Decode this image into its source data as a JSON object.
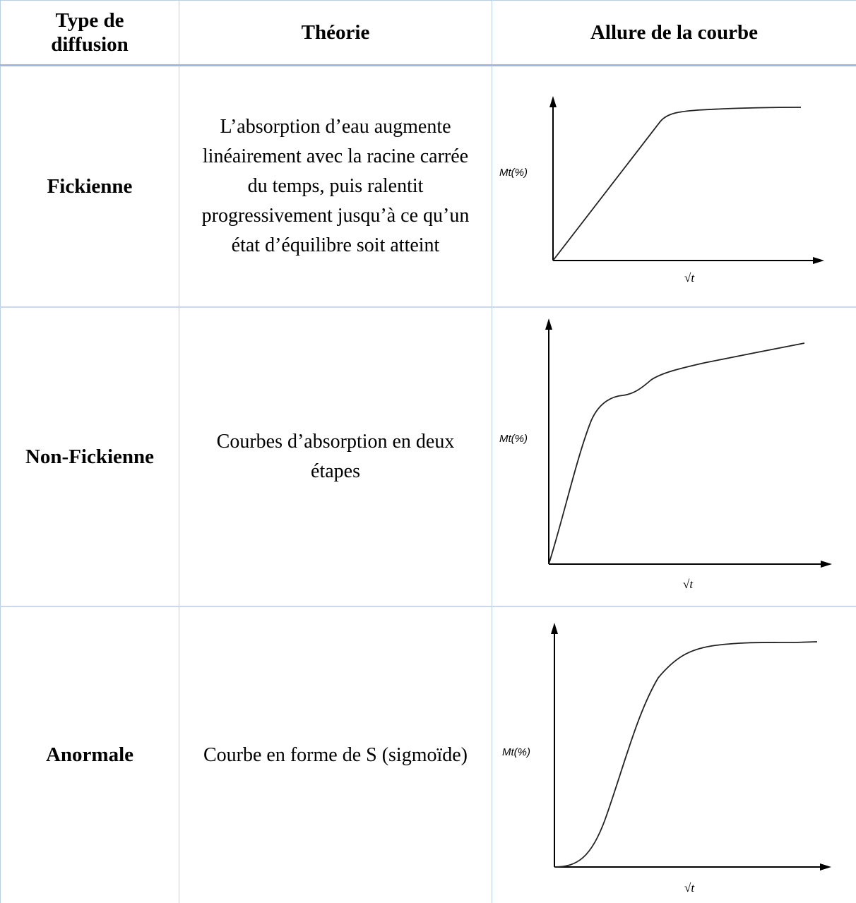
{
  "table": {
    "headers": {
      "type": "Type de diffusion",
      "theory": "Théorie",
      "curve": "Allure de la courbe"
    },
    "rows": [
      {
        "type": "Fickienne",
        "theory": "L’absorption d’eau augmente linéairement avec la racine carrée du temps, puis ralentit progressivement jusqu’à ce qu’un état d’équilibre soit atteint",
        "ylabel": "Mt(%)",
        "xlabel": "√t"
      },
      {
        "type": "Non-Fickienne",
        "theory": "Courbes d’absorption en deux étapes",
        "ylabel": "Mt(%)",
        "xlabel": "√t"
      },
      {
        "type": "Anormale",
        "theory": "Courbe en forme de S (sigmoïde)",
        "ylabel": "Mt(%)",
        "xlabel": "√t"
      }
    ]
  },
  "colors": {
    "grid_line": "#b9cfe6",
    "header_rule": "#9dbbe0"
  }
}
